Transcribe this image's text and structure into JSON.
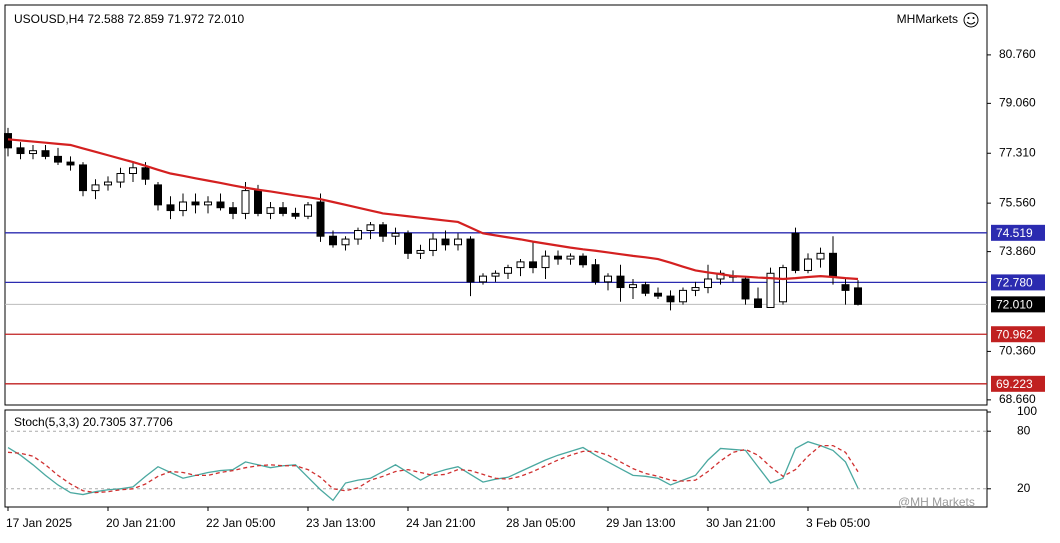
{
  "chart_data": [
    {
      "type": "candlestick",
      "title": "USOUSD,H4  72.588 72.859 71.972 72.010",
      "brand": "MHMarkets",
      "categories": [
        "17 Jan 2025",
        null,
        null,
        null,
        null,
        null,
        null,
        null,
        "20 Jan 21:00",
        null,
        null,
        null,
        null,
        null,
        null,
        null,
        "22 Jan 05:00",
        null,
        null,
        null,
        null,
        null,
        null,
        null,
        "23 Jan 13:00",
        null,
        null,
        null,
        null,
        null,
        null,
        null,
        "24 Jan 21:00",
        null,
        null,
        null,
        null,
        null,
        null,
        null,
        "28 Jan 05:00",
        null,
        null,
        null,
        null,
        null,
        null,
        null,
        "29 Jan 13:00",
        null,
        null,
        null,
        null,
        null,
        null,
        null,
        "30 Jan 21:00",
        null,
        null,
        null,
        null,
        null,
        null,
        null,
        "3 Feb 05:00",
        null,
        null,
        null,
        null
      ],
      "open": [
        78.0,
        77.5,
        77.3,
        77.4,
        77.2,
        77.0,
        76.9,
        76.0,
        76.2,
        76.3,
        76.6,
        76.8,
        76.2,
        75.5,
        75.3,
        75.6,
        75.5,
        75.6,
        75.4,
        75.2,
        76.0,
        75.2,
        75.4,
        75.2,
        75.1,
        75.6,
        74.4,
        74.1,
        74.3,
        74.6,
        74.8,
        74.4,
        74.5,
        73.8,
        73.9,
        74.3,
        74.1,
        74.3,
        72.8,
        73.0,
        73.1,
        73.3,
        73.5,
        73.3,
        73.7,
        73.6,
        73.7,
        73.4,
        72.8,
        73.0,
        72.6,
        72.7,
        72.4,
        72.3,
        72.1,
        72.5,
        72.6,
        72.9,
        73.0,
        72.9,
        72.2,
        71.9,
        72.1,
        74.5,
        73.2,
        73.6,
        73.8,
        72.7,
        72.588
      ],
      "high": [
        78.2,
        77.7,
        77.6,
        77.6,
        77.5,
        77.2,
        77.0,
        76.4,
        76.5,
        76.8,
        77.0,
        77.0,
        76.3,
        75.8,
        75.9,
        75.9,
        75.8,
        75.9,
        75.6,
        76.3,
        76.2,
        75.6,
        75.6,
        75.4,
        75.6,
        75.9,
        74.6,
        74.4,
        74.7,
        74.9,
        74.9,
        74.7,
        74.6,
        74.1,
        74.5,
        74.6,
        74.5,
        74.4,
        73.1,
        73.2,
        73.4,
        73.6,
        74.2,
        73.9,
        73.9,
        73.8,
        73.8,
        73.6,
        73.1,
        73.4,
        72.9,
        72.8,
        72.6,
        72.5,
        72.6,
        72.8,
        73.4,
        73.2,
        73.2,
        73.0,
        72.6,
        73.3,
        73.4,
        74.7,
        73.8,
        74.0,
        74.4,
        72.9,
        72.859
      ],
      "low": [
        77.2,
        77.1,
        77.1,
        77.1,
        76.9,
        76.7,
        75.8,
        75.7,
        76.0,
        76.1,
        76.3,
        76.2,
        75.3,
        75.0,
        75.1,
        75.2,
        75.2,
        75.3,
        75.0,
        75.0,
        75.1,
        75.0,
        75.1,
        75.0,
        75.0,
        74.2,
        74.0,
        73.9,
        74.1,
        74.3,
        74.2,
        74.1,
        73.6,
        73.6,
        73.7,
        73.9,
        73.9,
        72.3,
        72.7,
        72.8,
        72.9,
        73.0,
        73.1,
        72.9,
        73.4,
        73.4,
        73.3,
        72.7,
        72.5,
        72.1,
        72.2,
        72.3,
        72.2,
        71.8,
        72.0,
        72.3,
        72.4,
        72.7,
        72.8,
        72.0,
        71.9,
        71.9,
        72.0,
        73.1,
        73.1,
        73.3,
        72.7,
        72.0,
        71.972
      ],
      "close": [
        77.5,
        77.3,
        77.4,
        77.2,
        77.0,
        76.9,
        76.0,
        76.2,
        76.3,
        76.6,
        76.8,
        76.4,
        75.5,
        75.3,
        75.6,
        75.5,
        75.6,
        75.4,
        75.2,
        76.0,
        75.2,
        75.4,
        75.2,
        75.1,
        75.5,
        74.4,
        74.1,
        74.3,
        74.6,
        74.8,
        74.4,
        74.5,
        73.8,
        73.9,
        74.3,
        74.1,
        74.3,
        72.8,
        73.0,
        73.1,
        73.3,
        73.5,
        73.3,
        73.7,
        73.6,
        73.7,
        73.4,
        72.8,
        73.0,
        72.6,
        72.7,
        72.4,
        72.3,
        72.1,
        72.5,
        72.6,
        72.9,
        73.1,
        73.0,
        72.2,
        71.9,
        73.1,
        73.3,
        73.2,
        73.6,
        73.8,
        73.0,
        72.5,
        72.01
      ],
      "ma": {
        "color": "#d42020",
        "values": [
          77.8,
          77.76,
          77.72,
          77.68,
          77.64,
          77.6,
          77.48,
          77.36,
          77.24,
          77.12,
          77.0,
          76.87,
          76.73,
          76.6,
          76.52,
          76.43,
          76.35,
          76.27,
          76.18,
          76.1,
          76.03,
          75.97,
          75.9,
          75.83,
          75.77,
          75.7,
          75.6,
          75.5,
          75.4,
          75.3,
          75.2,
          75.15,
          75.1,
          75.05,
          75.0,
          74.95,
          74.9,
          74.7,
          74.5,
          74.43,
          74.36,
          74.29,
          74.21,
          74.14,
          74.07,
          74.0,
          73.94,
          73.89,
          73.83,
          73.77,
          73.71,
          73.66,
          73.6,
          73.47,
          73.33,
          73.2,
          73.13,
          73.07,
          73.0,
          72.98,
          72.95,
          72.93,
          72.9,
          72.93,
          72.97,
          73.0,
          72.97,
          72.93,
          72.9
        ]
      },
      "levels": [
        {
          "value": 74.519,
          "color": "#2b2bb0"
        },
        {
          "value": 72.78,
          "label": "72.780",
          "color": "#2b2bb0"
        },
        {
          "value": 72.01,
          "label": "72.010",
          "color": "#000000"
        },
        {
          "value": 70.962,
          "color": "#c02020"
        },
        {
          "value": 69.223,
          "color": "#c02020"
        }
      ],
      "ylim": [
        68.48,
        82.51
      ],
      "yticks": [
        {
          "value": 80.76,
          "label": "80.760"
        },
        {
          "value": 79.06,
          "label": "79.060"
        },
        {
          "value": 77.31,
          "label": "77.310"
        },
        {
          "value": 75.56,
          "label": "75.560"
        },
        {
          "value": 73.86,
          "label": "73.860"
        },
        {
          "value": 70.36,
          "label": "70.360"
        },
        {
          "value": 68.66,
          "label": "68.660"
        }
      ]
    },
    {
      "type": "stochastic",
      "title": "Stoch(5,3,3) 20.7305 37.7706",
      "series": [
        {
          "color": "#4aa8a0",
          "values": [
            63,
            55,
            45,
            34,
            24,
            16,
            14,
            17,
            19,
            20,
            22,
            33,
            43,
            37,
            31,
            34,
            37,
            39,
            40,
            48,
            45,
            42,
            44,
            45,
            32,
            19,
            8,
            26,
            29,
            31,
            38,
            45,
            37,
            29,
            36,
            40,
            43,
            35,
            27,
            30,
            32,
            38,
            44,
            50,
            55,
            59,
            63,
            55,
            48,
            41,
            34,
            33,
            31,
            24,
            29,
            34,
            50,
            62,
            61,
            60,
            43,
            26,
            31,
            62,
            69,
            65,
            60,
            48,
            20.7305
          ]
        },
        {
          "color": "#d03030",
          "dashed": true,
          "values": [
            58,
            57,
            54,
            45,
            34,
            25,
            18,
            16,
            17,
            19,
            20,
            25,
            33,
            38,
            37,
            34,
            34,
            37,
            39,
            42,
            44,
            45,
            44,
            44,
            40,
            32,
            20,
            18,
            21,
            29,
            33,
            38,
            40,
            37,
            34,
            35,
            40,
            39,
            35,
            31,
            30,
            33,
            38,
            44,
            50,
            55,
            59,
            59,
            55,
            48,
            41,
            36,
            33,
            29,
            28,
            29,
            38,
            49,
            58,
            61,
            55,
            43,
            33,
            40,
            54,
            65,
            65,
            58,
            37.7706
          ]
        }
      ],
      "ylim": [
        0,
        100
      ],
      "yticks": [
        100,
        80,
        20
      ],
      "levels": [
        80,
        20
      ]
    }
  ],
  "watermark": "@MH Markets"
}
